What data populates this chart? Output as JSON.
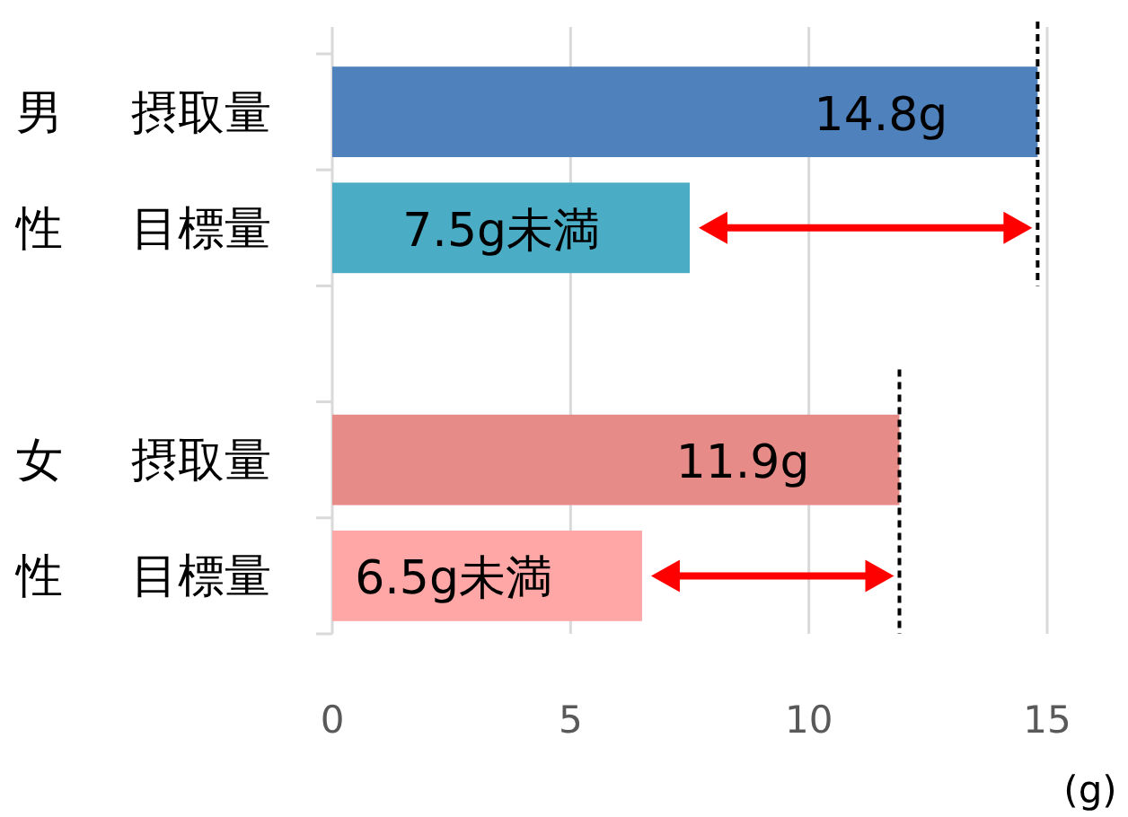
{
  "chart_data": {
    "type": "bar",
    "orientation": "horizontal",
    "categories": [
      "摂取量",
      "目標量",
      null,
      "摂取量",
      "目標量"
    ],
    "values": [
      14.8,
      7.5,
      null,
      11.9,
      6.5
    ],
    "colors": [
      "#4f81bd",
      "#4bacc6",
      null,
      "#e68b87",
      "#ffa6a6"
    ],
    "value_labels": [
      "14.8g",
      "7.5g未満",
      null,
      "11.9g",
      "6.5g未満"
    ],
    "xlim": [
      0,
      15
    ],
    "xticks": [
      0,
      5,
      10,
      15
    ],
    "xlabel": "(g)",
    "grid": "x",
    "ref_lines": [
      {
        "axis": "x",
        "value": 14.8,
        "line_style": "dashed",
        "color": "#000000"
      },
      {
        "axis": "x",
        "value": 11.9,
        "line_style": "dashed",
        "color": "#000000"
      }
    ],
    "annotations": [
      "男性",
      "女性"
    ]
  }
}
